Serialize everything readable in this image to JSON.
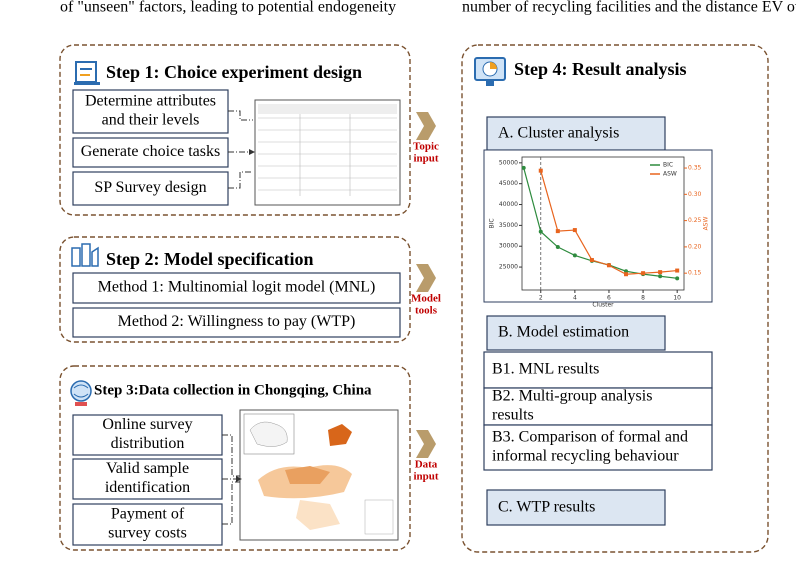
{
  "page_text": {
    "left": "of \"unseen\" factors, leading to potential endogeneity",
    "right": "number of recycling facilities and the distance EV owr"
  },
  "step1": {
    "title": "Step 1: Choice experiment design",
    "items": [
      [
        "Determine attributes",
        "and their levels"
      ],
      [
        "Generate choice tasks"
      ],
      [
        "SP Survey design"
      ]
    ]
  },
  "step2": {
    "title": "Step 2: Model specification",
    "items": [
      "Method 1: Multinomial logit model (MNL)",
      "Method 2: Willingness to pay (WTP)"
    ]
  },
  "step3": {
    "title": "Step 3:Data collection in Chongqing, China",
    "items": [
      [
        "Online survey",
        "distribution"
      ],
      [
        "Valid sample",
        "identification"
      ],
      [
        "Payment of",
        "survey costs"
      ]
    ]
  },
  "arrows": [
    [
      "Topic",
      "input"
    ],
    [
      "Model",
      "tools"
    ],
    [
      "Data",
      "input"
    ]
  ],
  "step4": {
    "title": "Step 4: Result analysis",
    "a": "A. Cluster analysis",
    "b": "B. Model estimation",
    "b_items": [
      [
        "B1. MNL results"
      ],
      [
        "B2. Multi-group analysis",
        "results"
      ],
      [
        "B3. Comparison of formal and",
        "informal recycling behaviour"
      ]
    ],
    "c": "C. WTP results"
  },
  "chart_data": {
    "type": "line",
    "x_label": "Cluster",
    "y_label": "BIC",
    "y2_label": "ASW",
    "x": [
      1,
      2,
      3,
      4,
      5,
      6,
      7,
      8,
      9,
      10
    ],
    "xlim": [
      0.9,
      10.4
    ],
    "xticks": [
      2,
      4,
      6,
      8,
      10
    ],
    "ylim": [
      19500,
      51400
    ],
    "yticks": [
      25000,
      30000,
      35000,
      40000,
      45000,
      50000
    ],
    "y2lim": [
      0.118,
      0.371
    ],
    "y2ticks": [
      0.15,
      {
        "value": 0.2,
        "label": "0.20"
      },
      0.25,
      {
        "value": 0.3,
        "label": "0.30"
      },
      0.35
    ],
    "marker_x": 2,
    "legend": "upper right",
    "series": [
      {
        "name": "BIC",
        "color": "#2e8b3e",
        "values": [
          48800,
          33500,
          29800,
          27800,
          26500,
          25500,
          24000,
          23300,
          22800,
          22300
        ]
      },
      {
        "name": "ASW",
        "color": "#e8641e",
        "axis": "y2",
        "values": [
          null,
          0.345,
          0.23,
          0.232,
          0.175,
          0.165,
          0.148,
          0.15,
          0.152,
          0.155
        ]
      }
    ]
  }
}
